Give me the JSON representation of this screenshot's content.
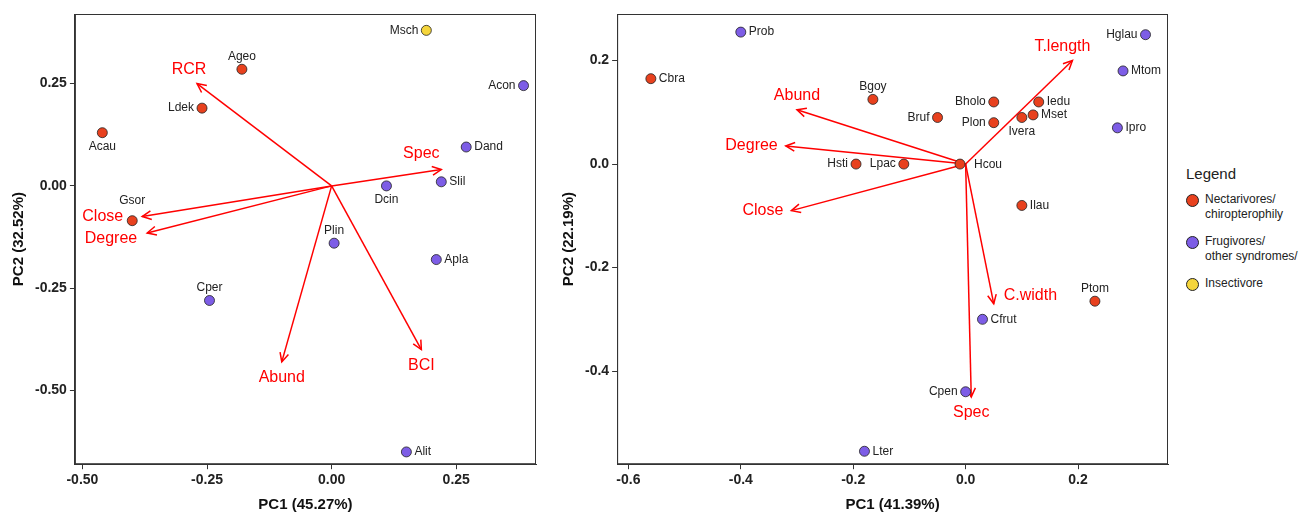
{
  "legend_title": "Legend",
  "chart_data": [
    {
      "type": "scatter",
      "x_label": "PC1 (45.27%)",
      "y_label": "PC2 (32.52%)",
      "xlim": [
        -0.515,
        0.41
      ],
      "ylim": [
        -0.68,
        0.42
      ],
      "xticks": [
        {
          "value": -0.5,
          "label": "-0.50"
        },
        -0.25,
        {
          "value": 0,
          "label": "0.00"
        },
        0.25
      ],
      "yticks": [
        {
          "value": -0.5,
          "label": "-0.50"
        },
        -0.25,
        {
          "value": 0,
          "label": "0.00"
        },
        0.25
      ],
      "grid": false,
      "marker": "circle",
      "series": [
        {
          "name": "Nectarivores/ chiropterophily",
          "color": "#e8411e",
          "labels": [
            "Acau",
            "Ageo",
            "Ldek",
            "Gsor"
          ],
          "x": [
            -0.46,
            -0.18,
            -0.26,
            -0.4
          ],
          "y": [
            0.13,
            0.285,
            0.19,
            -0.085
          ]
        },
        {
          "name": "Frugivores/ other syndromes/",
          "color": "#7d5de6",
          "labels": [
            "Acon",
            "Dand",
            "Dcin",
            "Slil",
            "Plin",
            "Apla",
            "Cper",
            "Alit"
          ],
          "x": [
            0.385,
            0.27,
            0.11,
            0.22,
            0.005,
            0.21,
            -0.245,
            0.15
          ],
          "y": [
            0.245,
            0.095,
            0.0,
            0.01,
            -0.14,
            -0.18,
            -0.28,
            -0.65
          ]
        },
        {
          "name": "Insectivore",
          "color": "#f5d53b",
          "labels": [
            "Msch"
          ],
          "x": [
            0.19
          ],
          "y": [
            0.38
          ]
        }
      ],
      "vectors": {
        "color": "#ff0000",
        "labels": [
          "RCR",
          "Spec",
          "Close",
          "Degree",
          "Abund",
          "BCI"
        ],
        "x": [
          -0.27,
          0.22,
          -0.38,
          -0.37,
          -0.1,
          0.18
        ],
        "y": [
          0.25,
          0.04,
          -0.075,
          -0.115,
          -0.43,
          -0.4
        ]
      }
    },
    {
      "type": "scatter",
      "x_label": "PC1 (41.39%)",
      "y_label": "PC2 (22.19%)",
      "xlim": [
        -0.62,
        0.36
      ],
      "ylim": [
        -0.58,
        0.29
      ],
      "xticks": [
        -0.6,
        -0.4,
        -0.2,
        {
          "value": 0,
          "label": "0.0"
        },
        0.2
      ],
      "yticks": [
        -0.4,
        -0.2,
        {
          "value": 0,
          "label": "0.0"
        },
        0.2
      ],
      "grid": false,
      "legend": "right",
      "marker": "circle",
      "series": [
        {
          "name": "Nectarivores/ chiropterophily",
          "color": "#e8411e",
          "labels": [
            "Cbra",
            "Bgoy",
            "Bholo",
            "Iedu",
            "Bruf",
            "Plon",
            "Ivera",
            "Mset",
            "Hsti",
            "Lpac",
            "Hcou",
            "Ilau",
            "Ptom"
          ],
          "x": [
            -0.56,
            -0.165,
            0.05,
            0.13,
            -0.05,
            0.05,
            0.1,
            0.12,
            -0.195,
            -0.11,
            -0.01,
            0.1,
            0.23
          ],
          "y": [
            0.165,
            0.125,
            0.12,
            0.12,
            0.09,
            0.08,
            0.09,
            0.095,
            0.0,
            0.0,
            0.0,
            -0.08,
            -0.265
          ]
        },
        {
          "name": "Frugivores/ other syndromes/",
          "color": "#7d5de6",
          "labels": [
            "Prob",
            "Hglau",
            "Mtom",
            "Ipro",
            "Cfrut",
            "Cpen",
            "Lter"
          ],
          "x": [
            -0.4,
            0.32,
            0.28,
            0.27,
            0.03,
            0.0,
            -0.18
          ],
          "y": [
            0.255,
            0.25,
            0.18,
            0.07,
            -0.3,
            -0.44,
            -0.555
          ]
        }
      ],
      "vectors": {
        "color": "#ff0000",
        "labels": [
          "T.length",
          "Abund",
          "Degree",
          "Close",
          "C.width",
          "Spec"
        ],
        "x": [
          0.19,
          -0.3,
          -0.32,
          -0.31,
          0.05,
          0.01
        ],
        "y": [
          0.2,
          0.105,
          0.035,
          -0.09,
          -0.27,
          -0.45
        ]
      }
    }
  ]
}
